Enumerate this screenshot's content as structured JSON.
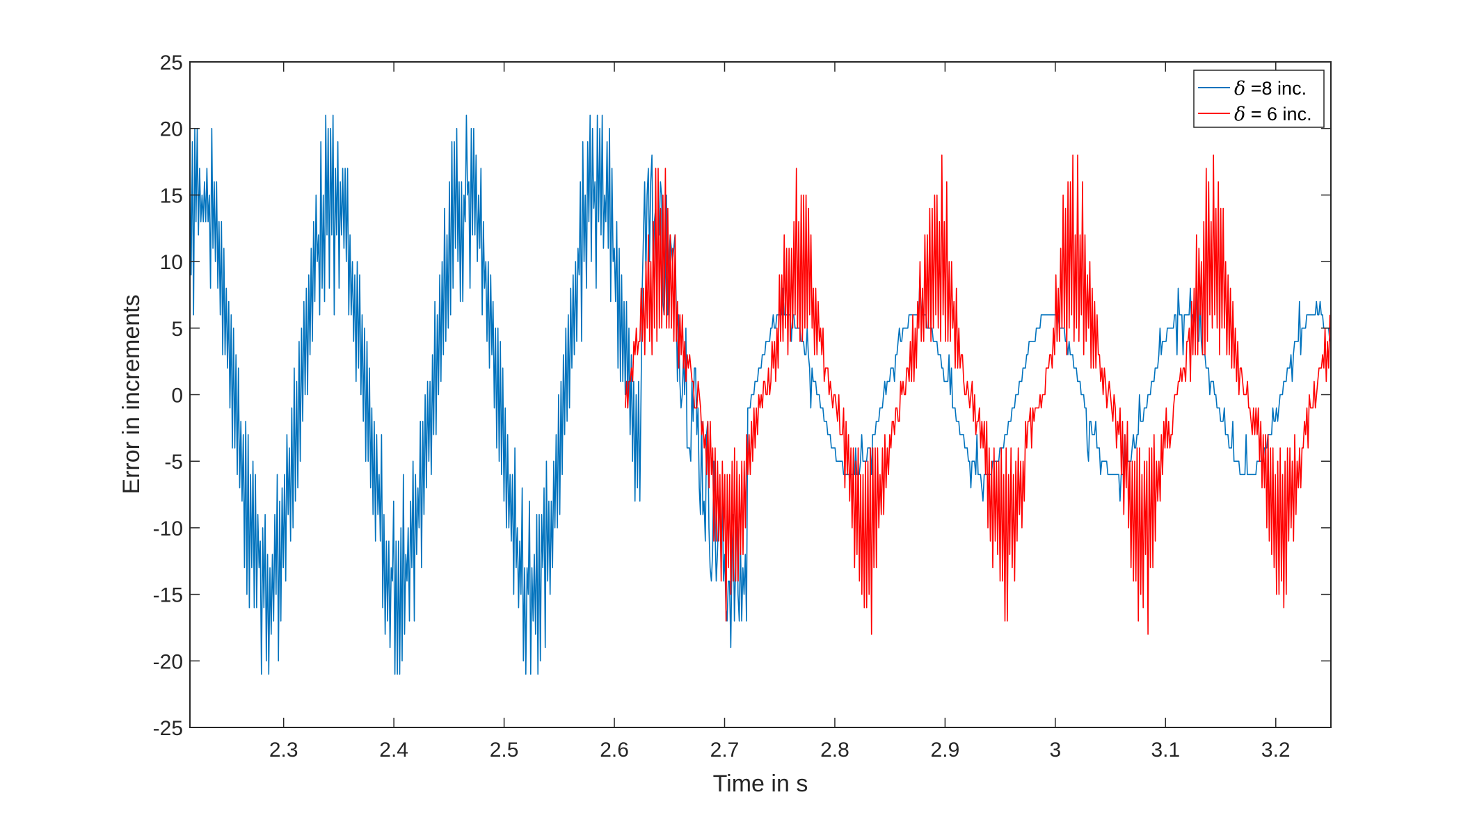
{
  "chart_data": {
    "type": "line",
    "title": "",
    "xlabel": "Time in s",
    "ylabel": "Error in increments",
    "xlim": [
      2.215,
      3.25
    ],
    "ylim": [
      -25,
      25
    ],
    "xticks": [
      2.3,
      2.4,
      2.5,
      2.6,
      2.7,
      2.8,
      2.9,
      3,
      3.1,
      3.2
    ],
    "xtick_labels": [
      "2.3",
      "2.4",
      "2.5",
      "2.6",
      "2.7",
      "2.8",
      "2.9",
      "3",
      "3.1",
      "3.2"
    ],
    "yticks": [
      25,
      20,
      15,
      10,
      5,
      0,
      -5,
      -10,
      -15,
      -20,
      -25
    ],
    "ytick_labels": [
      "25",
      "20",
      "15",
      "10",
      "5",
      "0",
      "-5",
      "-10",
      "-15",
      "-20",
      "-25"
    ],
    "grid": false,
    "legend_position": "top-right",
    "series": [
      {
        "name": "δ =8 inc.",
        "legend_symbol": "δ",
        "legend_rest": " =8 inc.",
        "color": "#0072BD",
        "x_range": [
          2.215,
          3.25
        ],
        "oscillation_period_s": 0.12,
        "envelope_amplitude_before_2.63s": 19,
        "envelope_amplitude_after_2.63s": 6,
        "transient_extrema": {
          "max": 21,
          "min": -21
        }
      },
      {
        "name": "δ = 6 inc.",
        "legend_symbol": "δ",
        "legend_rest": " = 6 inc.",
        "color": "#FF0000",
        "x_range": [
          2.61,
          3.25
        ],
        "oscillation_period_s": 0.125,
        "envelope_max": 18,
        "envelope_min": -19
      }
    ]
  }
}
